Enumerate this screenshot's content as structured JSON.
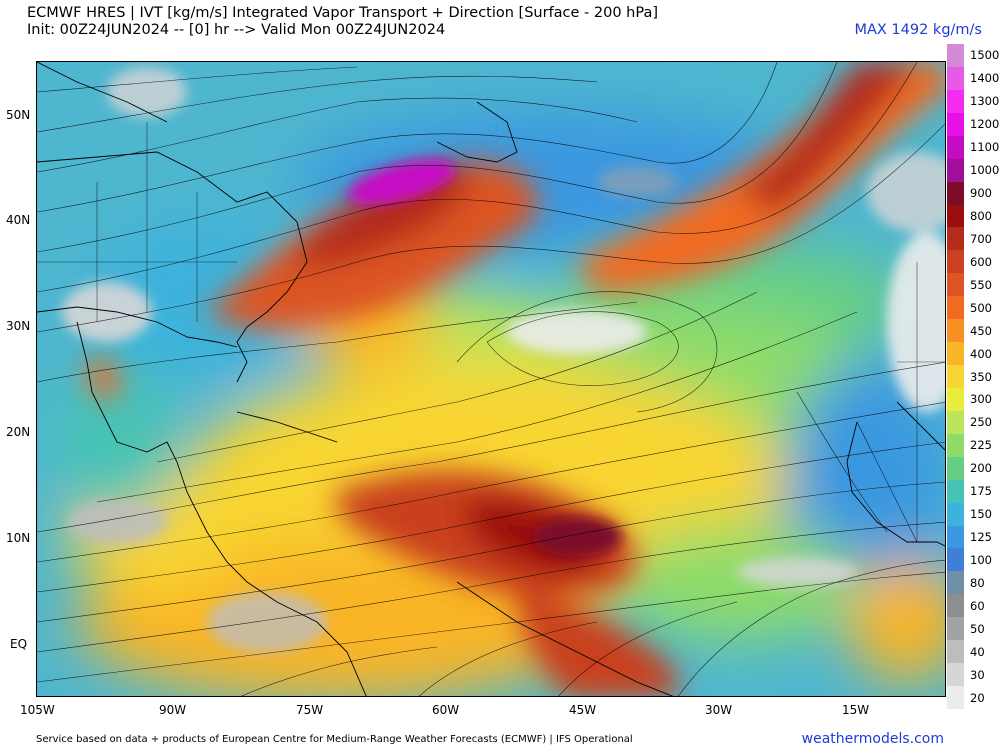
{
  "header": {
    "title_line1": "ECMWF HRES | IVT [kg/m/s] Integrated Vapor Transport + Direction [Surface - 200 hPa]",
    "title_line2": "Init: 00Z24JUN2024 -- [0] hr --> Valid Mon 00Z24JUN2024",
    "max_label": "MAX 1492 kg/m/s"
  },
  "map": {
    "lat_labels": [
      "50N",
      "40N",
      "30N",
      "20N",
      "10N",
      "EQ"
    ],
    "lon_labels": [
      "105W",
      "90W",
      "75W",
      "60W",
      "45W",
      "30W",
      "15W"
    ]
  },
  "colorbar": {
    "levels": [
      {
        "label": "1500",
        "color": "#d58ad8"
      },
      {
        "label": "1400",
        "color": "#e75ae3"
      },
      {
        "label": "1300",
        "color": "#f42cef"
      },
      {
        "label": "1200",
        "color": "#e611e6"
      },
      {
        "label": "1100",
        "color": "#c40cc4"
      },
      {
        "label": "1000",
        "color": "#a10e9a"
      },
      {
        "label": "900",
        "color": "#7d0b2a"
      },
      {
        "label": "800",
        "color": "#9b0d0f"
      },
      {
        "label": "700",
        "color": "#b42c1a"
      },
      {
        "label": "600",
        "color": "#c9411f"
      },
      {
        "label": "550",
        "color": "#dc5524"
      },
      {
        "label": "500",
        "color": "#f06a22"
      },
      {
        "label": "450",
        "color": "#f68f24"
      },
      {
        "label": "400",
        "color": "#f9b525"
      },
      {
        "label": "350",
        "color": "#f8d532"
      },
      {
        "label": "300",
        "color": "#e8ec3a"
      },
      {
        "label": "250",
        "color": "#b9e65a"
      },
      {
        "label": "225",
        "color": "#8edb6a"
      },
      {
        "label": "200",
        "color": "#66cf86"
      },
      {
        "label": "175",
        "color": "#47c3b4"
      },
      {
        "label": "150",
        "color": "#3cb2dc"
      },
      {
        "label": "125",
        "color": "#3a98e0"
      },
      {
        "label": "100",
        "color": "#3f7fd8"
      },
      {
        "label": "80",
        "color": "#6f8ea8"
      },
      {
        "label": "60",
        "color": "#8e8e8e"
      },
      {
        "label": "50",
        "color": "#a3a3a3"
      },
      {
        "label": "40",
        "color": "#bdbdbd"
      },
      {
        "label": "30",
        "color": "#d6d6d6"
      },
      {
        "label": "20",
        "color": "#ececec"
      }
    ]
  },
  "footer": {
    "credit": "Service based on data + products of European Centre for Medium-Range Weather Forecasts (ECMWF) | IFS Operational",
    "brand": "weathermodels.com"
  }
}
